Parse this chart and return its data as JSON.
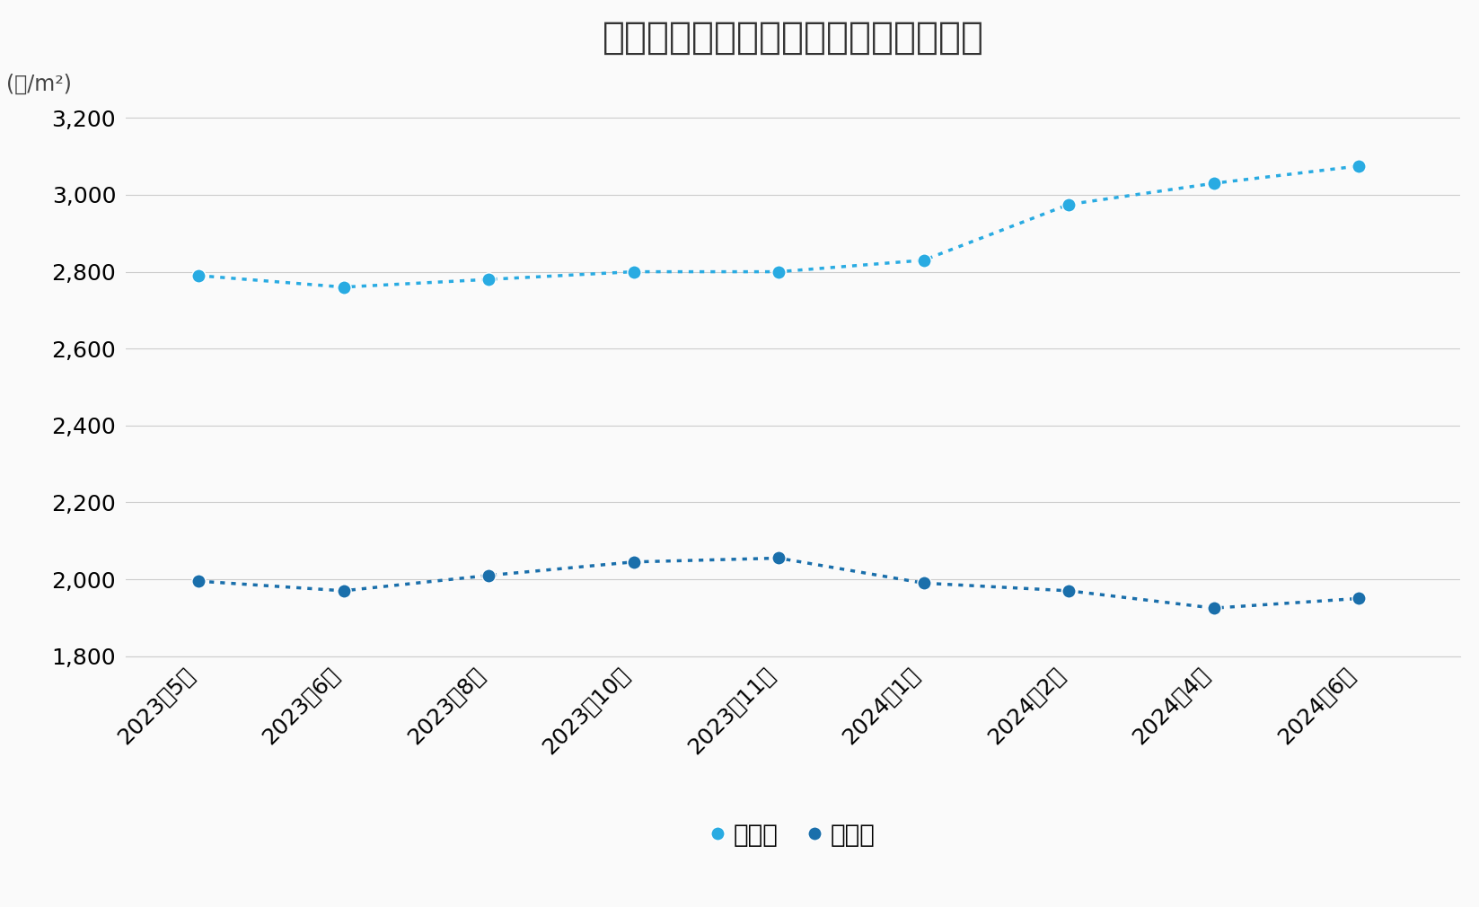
{
  "title": "大阪市と神戸市のマンション家賃推移",
  "ylabel": "(円/m²)",
  "xlabel_labels": [
    "2023年5月",
    "2023年6月",
    "2023年8月",
    "2023年10月",
    "2023年11月",
    "2024年1月",
    "2024年2月",
    "2024年4月",
    "2024年6月"
  ],
  "osaka_values": [
    2790,
    2760,
    2780,
    2800,
    2800,
    2830,
    2975,
    3030,
    3075
  ],
  "kobe_values": [
    1995,
    1970,
    2010,
    2045,
    2055,
    1990,
    1970,
    1925,
    1950
  ],
  "osaka_color": "#29ABE2",
  "kobe_color": "#1A6FAB",
  "background_color": "#FAFAFA",
  "ylim_min": 1800,
  "ylim_max": 3300,
  "ytick_values": [
    1800,
    2000,
    2200,
    2400,
    2600,
    2800,
    3000,
    3200
  ],
  "legend_osaka": "大阪市",
  "legend_kobe": "神戸市",
  "title_fontsize": 30,
  "tick_fontsize": 18,
  "legend_fontsize": 20,
  "ylabel_fontsize": 17
}
